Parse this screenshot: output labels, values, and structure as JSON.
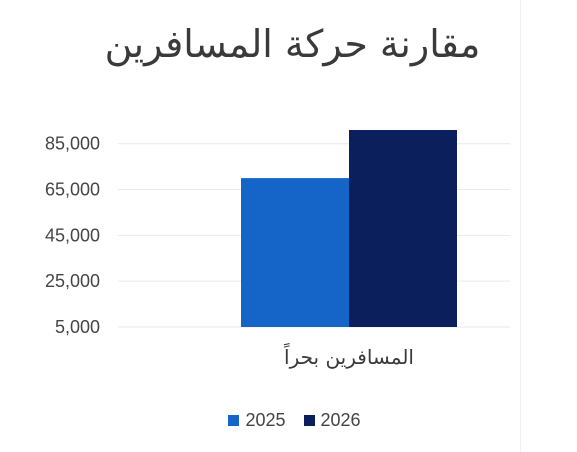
{
  "colors": {
    "series_2025": "#1565c8",
    "series_2026": "#0b1f5c",
    "grid": "#e6e9ee",
    "axis_text": "#454545"
  },
  "chart_data": {
    "type": "bar",
    "title": "مقارنة حركة المسافرين",
    "categories": [
      "المسافرين بحراً"
    ],
    "series": [
      {
        "name": "2025",
        "values": [
          70000
        ]
      },
      {
        "name": "2026",
        "values": [
          91000
        ]
      }
    ],
    "yticks": [
      "5,000",
      "25,000",
      "45,000",
      "65,000",
      "85,000"
    ],
    "ylim": [
      5000,
      91000
    ],
    "grid": true,
    "legend_position": "bottom"
  }
}
